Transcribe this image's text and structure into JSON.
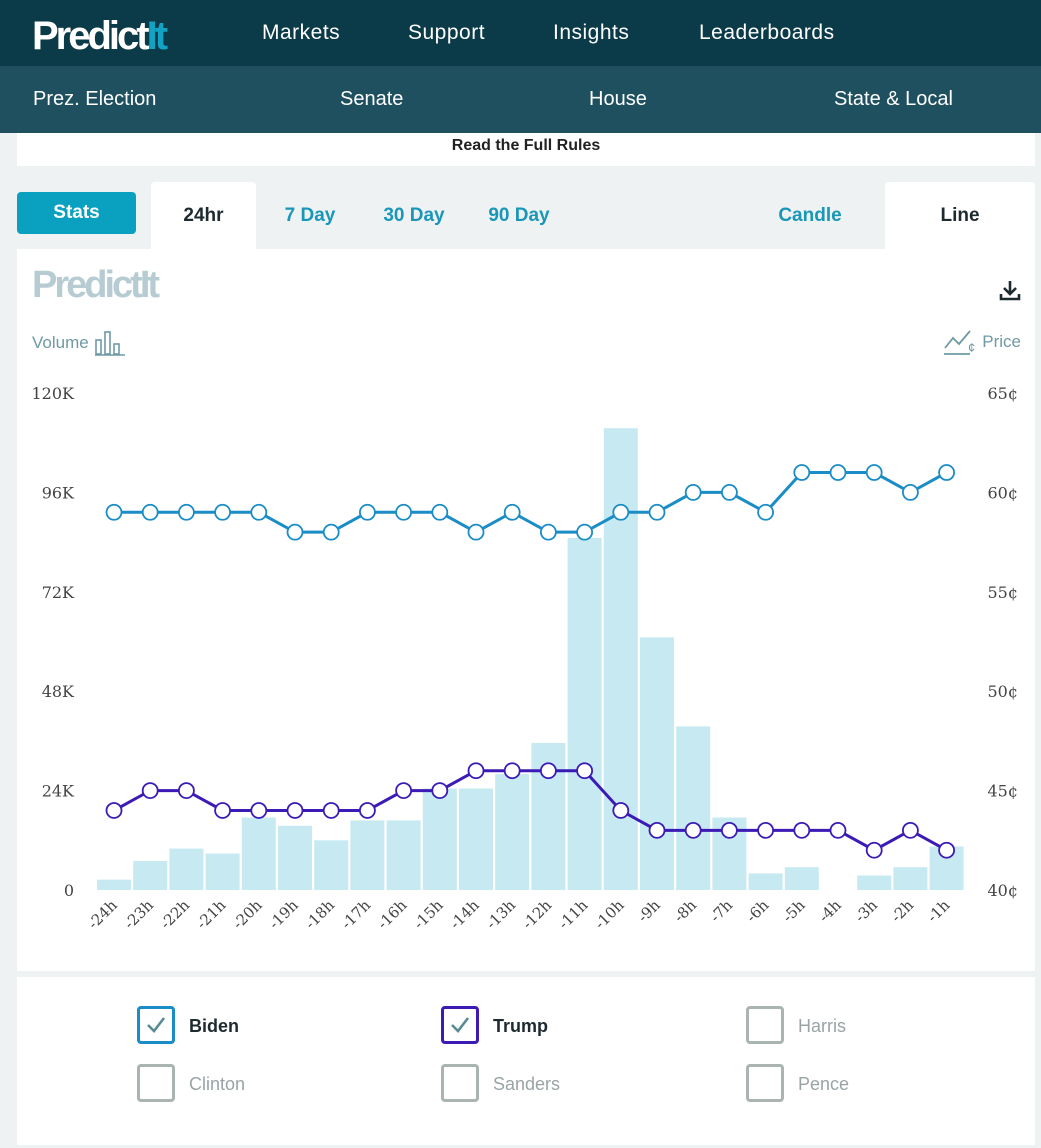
{
  "header": {
    "logo": {
      "predict": "Predict",
      "it": "It"
    },
    "nav": [
      "Markets",
      "Support",
      "Insights",
      "Leaderboards"
    ]
  },
  "subnav": [
    "Prez. Election",
    "Senate",
    "House",
    "State & Local"
  ],
  "rules_link": "Read the Full Rules",
  "tabs": {
    "stats": "Stats",
    "ranges": [
      "24hr",
      "7 Day",
      "30 Day",
      "90 Day"
    ],
    "active_range": "24hr",
    "chart_types": [
      "Candle",
      "Line"
    ],
    "active_chart_type": "Line"
  },
  "chart_labels": {
    "logo": {
      "predict": "Predict",
      "it": "It"
    },
    "volume": "Volume",
    "price": "Price"
  },
  "chart_data": {
    "type": "bar+line",
    "categories": [
      "-24h",
      "-23h",
      "-22h",
      "-21h",
      "-20h",
      "-19h",
      "-18h",
      "-17h",
      "-16h",
      "-15h",
      "-14h",
      "-13h",
      "-12h",
      "-11h",
      "-10h",
      "-9h",
      "-8h",
      "-7h",
      "-6h",
      "-5h",
      "-4h",
      "-3h",
      "-2h",
      "-1h"
    ],
    "volume": {
      "name": "Volume",
      "axis": "left",
      "ylim": [
        0,
        120000
      ],
      "ticks": [
        "0",
        "24K",
        "48K",
        "72K",
        "96K",
        "120K"
      ],
      "values": [
        2500,
        7000,
        10000,
        8800,
        17500,
        15500,
        12000,
        16800,
        16800,
        24500,
        24500,
        28000,
        35500,
        85000,
        111500,
        61000,
        39500,
        17500,
        4000,
        5500,
        0,
        3500,
        5500,
        10500
      ]
    },
    "price_axis": {
      "axis": "right",
      "ylim": [
        40,
        65
      ],
      "ticks": [
        "40¢",
        "45¢",
        "50¢",
        "55¢",
        "60¢",
        "65¢"
      ]
    },
    "series": [
      {
        "name": "Biden",
        "color": "#1a8cc6",
        "values": [
          59,
          59,
          59,
          59,
          59,
          58,
          58,
          59,
          59,
          59,
          58,
          59,
          58,
          58,
          59,
          59,
          60,
          60,
          59,
          61,
          61,
          61,
          60,
          61
        ]
      },
      {
        "name": "Trump",
        "color": "#3b1ab5",
        "values": [
          44,
          45,
          45,
          44,
          44,
          44,
          44,
          44,
          45,
          45,
          46,
          46,
          46,
          46,
          44,
          43,
          43,
          43,
          43,
          43,
          43,
          42,
          43,
          42
        ]
      }
    ]
  },
  "legend": [
    {
      "name": "Biden",
      "checked": true,
      "color": "#1a8cc6"
    },
    {
      "name": "Trump",
      "checked": true,
      "color": "#3b1ab5"
    },
    {
      "name": "Harris",
      "checked": false,
      "color": "#aab4b0"
    },
    {
      "name": "Clinton",
      "checked": false,
      "color": "#aab4b0"
    },
    {
      "name": "Sanders",
      "checked": false,
      "color": "#aab4b0"
    },
    {
      "name": "Pence",
      "checked": false,
      "color": "#aab4b0"
    }
  ]
}
